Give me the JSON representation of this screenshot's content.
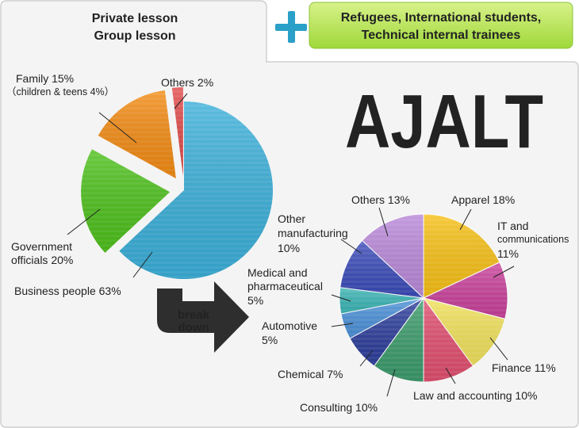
{
  "header": {
    "lesson_line1": "Private lesson",
    "lesson_line2": "Group lesson",
    "plus_symbol": "+",
    "extra_line1": "Refugees, International students,",
    "extra_line2": "Technical internal trainees"
  },
  "logo": {
    "text": "AJALT"
  },
  "breakdown_arrow": {
    "line1": "break",
    "line2": "down"
  },
  "chart_data": [
    {
      "type": "pie",
      "title": "",
      "slices": [
        {
          "label": "Business people",
          "value": 63,
          "color": "#3aaed8"
        },
        {
          "label": "Government officials",
          "value": 20,
          "color": "#4cbf1a"
        },
        {
          "label": "Family",
          "value": 15,
          "note": "(children & teens 4%)",
          "color": "#f28a12"
        },
        {
          "label": "Others",
          "value": 2,
          "color": "#e04848"
        }
      ],
      "labels": {
        "business": "Business people 63%",
        "government_1": "Government",
        "government_2": "officials 20%",
        "family_1": "Family 15%",
        "family_2": "（children & teens 4%）",
        "others": "Others 2%"
      }
    },
    {
      "type": "pie",
      "title": "",
      "slices": [
        {
          "label": "Apparel",
          "value": 18,
          "color": "#f6bf14"
        },
        {
          "label": "IT and communications",
          "value": 11,
          "color": "#c8409a"
        },
        {
          "label": "Finance",
          "value": 11,
          "color": "#f0e15a"
        },
        {
          "label": "Law and accounting",
          "value": 10,
          "color": "#e04e6e"
        },
        {
          "label": "Consulting",
          "value": 10,
          "color": "#3a9a6a"
        },
        {
          "label": "Chemical",
          "value": 7,
          "color": "#2c3d9a"
        },
        {
          "label": "Automotive",
          "value": 5,
          "color": "#4a90d8"
        },
        {
          "label": "Medical and pharmaceutical",
          "value": 5,
          "color": "#3ab4b4"
        },
        {
          "label": "Other manufacturing",
          "value": 10,
          "color": "#3a4ab8"
        },
        {
          "label": "Others",
          "value": 13,
          "color": "#b888d8"
        }
      ],
      "labels": {
        "apparel": "Apparel 18%",
        "it_1": "IT and",
        "it_2": "communications",
        "it_3": "11%",
        "finance": "Finance 11%",
        "law": "Law and accounting 10%",
        "consulting": "Consulting 10%",
        "chemical": "Chemical 7%",
        "automotive_1": "Automotive",
        "automotive_2": "5%",
        "medical_1": "Medical and",
        "medical_2": "pharmaceutical",
        "medical_3": "5%",
        "othermfg_1": "Other",
        "othermfg_2": "manufacturing",
        "othermfg_3": "10%",
        "others": "Others 13%"
      }
    }
  ]
}
